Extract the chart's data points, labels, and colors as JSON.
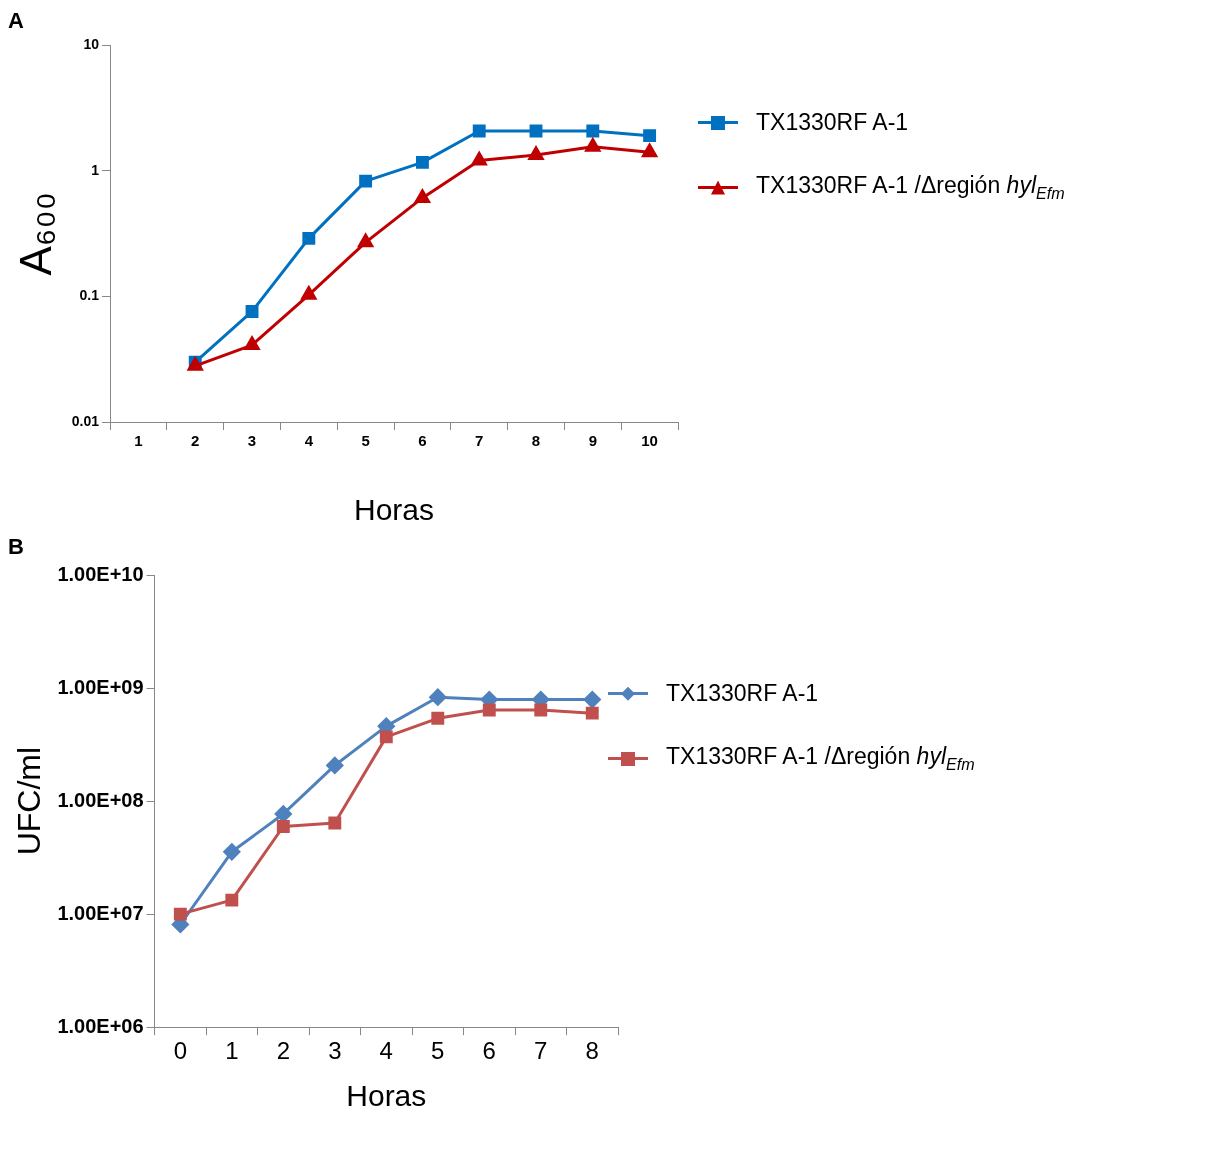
{
  "chart_data": [
    {
      "type": "line",
      "annotations": [
        "A"
      ],
      "xlabel": "Horas",
      "ylabel": "A₆₀₀",
      "categories": [
        "1",
        "2",
        "3",
        "4",
        "5",
        "6",
        "7",
        "8",
        "9",
        "10"
      ],
      "log": "y",
      "ylim": [
        0.01,
        10
      ],
      "yticks": [
        0.01,
        0.1,
        1,
        10
      ],
      "grid": false,
      "legend": "right",
      "series": [
        {
          "name": "TX1330RF A-1",
          "color": "#0070c0",
          "marker": "square",
          "values": [
            null,
            0.03,
            0.076,
            0.29,
            0.83,
            1.17,
            2.08,
            2.08,
            2.08,
            1.91
          ]
        },
        {
          "name": "TX1330RF A-1 /Δregión hyl$_{Efm}$",
          "color": "#c00000",
          "marker": "triangle",
          "values": [
            null,
            0.028,
            0.041,
            0.103,
            0.27,
            0.61,
            1.21,
            1.34,
            1.56,
            1.41
          ]
        }
      ]
    },
    {
      "type": "line",
      "annotations": [
        "B"
      ],
      "xlabel": "Horas",
      "ylabel": "UFC/ml",
      "categories": [
        "0",
        "1",
        "2",
        "3",
        "4",
        "5",
        "6",
        "7",
        "8"
      ],
      "log": "y",
      "ylim": [
        1000000,
        10000000000
      ],
      "yticks": [
        {
          "value": 1000000,
          "label": "1.00E+06"
        },
        {
          "value": 10000000,
          "label": "1.00E+07"
        },
        {
          "value": 100000000,
          "label": "1.00E+08"
        },
        {
          "value": 1000000000,
          "label": "1.00E+09"
        },
        {
          "value": 10000000000,
          "label": "1.00E+10"
        }
      ],
      "grid": false,
      "legend": "right",
      "series": [
        {
          "name": "TX1330RF A-1",
          "color": "#4f81bd",
          "marker": "diamond",
          "values": [
            8100000,
            35600000,
            77000000,
            207000000,
            460000000,
            830000000,
            790000000,
            790000000,
            790000000
          ]
        },
        {
          "name": "TX1330RF A-1 /Δregión hyl$_{Efm}$",
          "color": "#c0504d",
          "marker": "square",
          "values": [
            10000000,
            13300000,
            59600000,
            64000000,
            370000000,
            540000000,
            640000000,
            640000000,
            600000000
          ]
        }
      ]
    }
  ]
}
